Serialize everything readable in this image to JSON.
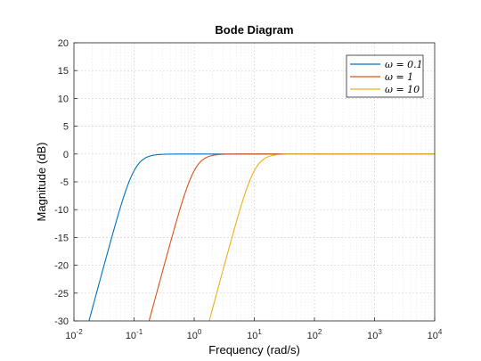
{
  "chart_data": {
    "type": "line",
    "title": "Bode Diagram",
    "xlabel": "Frequency  (rad/s)",
    "ylabel": "Magnitude (dB)",
    "xscale": "log",
    "xlim": [
      0.01,
      10000
    ],
    "ylim": [
      -30,
      20
    ],
    "x_ticks": [
      0.01,
      0.1,
      1,
      10,
      100,
      1000,
      10000
    ],
    "x_tick_labels": [
      {
        "base": "10",
        "exp": "-2"
      },
      {
        "base": "10",
        "exp": "-1"
      },
      {
        "base": "10",
        "exp": "0"
      },
      {
        "base": "10",
        "exp": "1"
      },
      {
        "base": "10",
        "exp": "2"
      },
      {
        "base": "10",
        "exp": "3"
      },
      {
        "base": "10",
        "exp": "4"
      }
    ],
    "y_ticks": [
      -30,
      -25,
      -20,
      -15,
      -10,
      -5,
      0,
      5,
      10,
      15,
      20
    ],
    "y_tick_labels": [
      "-30",
      "-25",
      "-20",
      "-15",
      "-10",
      "-5",
      "0",
      "5",
      "10",
      "15",
      "20"
    ],
    "grid": "on (major and minor)",
    "legend_position": "top-right",
    "series": [
      {
        "name": "ω = 0.1",
        "color": "#0072BD",
        "omega": 0.1
      },
      {
        "name": "ω = 1",
        "color": "#D95319",
        "omega": 1
      },
      {
        "name": "ω = 10",
        "color": "#EDB120",
        "omega": 10
      }
    ]
  }
}
